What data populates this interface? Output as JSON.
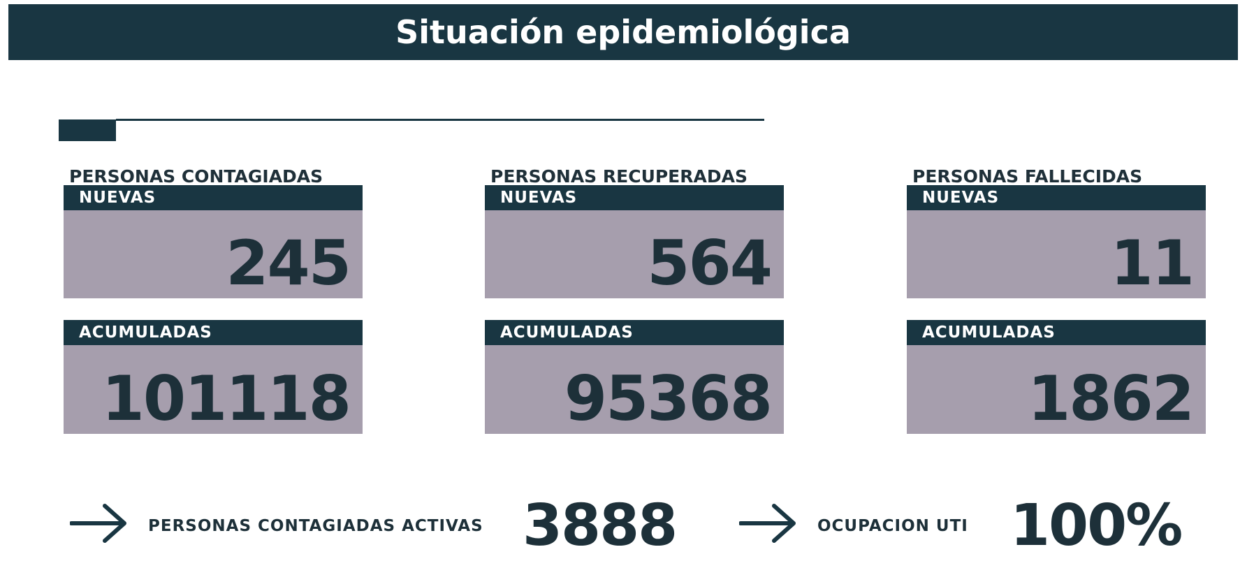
{
  "header": {
    "title": "Situación epidemiológica"
  },
  "sections": [
    {
      "title": "PERSONAS CONTAGIADAS",
      "nuevas": {
        "label": "NUEVAS",
        "value": "245"
      },
      "acumuladas": {
        "label": "ACUMULADAS",
        "value": "101118"
      }
    },
    {
      "title": "PERSONAS RECUPERADAS",
      "nuevas": {
        "label": "NUEVAS",
        "value": "564"
      },
      "acumuladas": {
        "label": "ACUMULADAS",
        "value": "95368"
      }
    },
    {
      "title": "PERSONAS FALLECIDAS",
      "nuevas": {
        "label": "NUEVAS",
        "value": "11"
      },
      "acumuladas": {
        "label": "ACUMULADAS",
        "value": "1862"
      }
    }
  ],
  "summary": {
    "activas": {
      "label": "PERSONAS CONTAGIADAS ACTIVAS",
      "value": "3888"
    },
    "uti": {
      "label": "OCUPACION UTI",
      "value": "100%"
    }
  },
  "colors": {
    "navy": "#193642",
    "card_fill": "#a69ead",
    "value_text": "#1d3039",
    "background": "#ffffff"
  },
  "icons": {
    "summary_arrow": "arrow-right-icon"
  }
}
